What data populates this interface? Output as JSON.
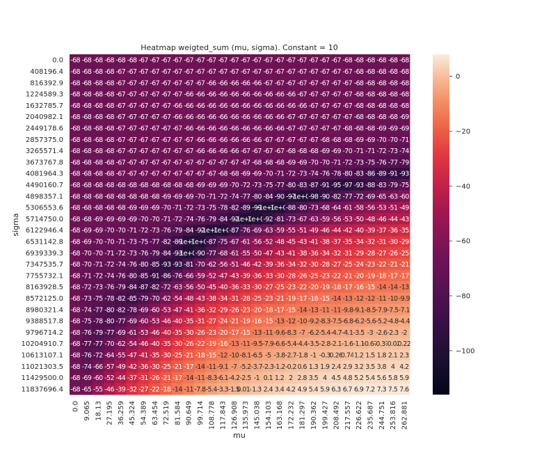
{
  "chart_data": {
    "type": "heatmap",
    "title": "Heatmap weigted_sum (mu, sigma). Constant = 10",
    "xlabel": "mu",
    "ylabel": "sigma",
    "x_ticks": [
      "0.0",
      "9.065",
      "18.13",
      "27.195",
      "36.259",
      "45.324",
      "54.389",
      "63.454",
      "72.519",
      "81.584",
      "90.649",
      "99.714",
      "108.778",
      "117.843",
      "126.908",
      "135.973",
      "145.038",
      "154.103",
      "163.168",
      "172.232",
      "181.297",
      "190.362",
      "199.427",
      "208.492",
      "217.557",
      "226.622",
      "235.687",
      "244.751",
      "253.816",
      "262.881"
    ],
    "y_ticks": [
      "0.0",
      "408196.4",
      "816392.9",
      "1224589.3",
      "1632785.7",
      "2040982.1",
      "2449178.6",
      "2857375.0",
      "3265571.4",
      "3673767.8",
      "4081964.3",
      "4490160.7",
      "4898357.1",
      "5306553.6",
      "5714750.0",
      "6122946.4",
      "6531142.8",
      "6939339.3",
      "7347535.7",
      "7755732.1",
      "8163928.5",
      "8572125.0",
      "8980321.4",
      "9388517.8",
      "9796714.2",
      "10204910.7",
      "10613107.1",
      "11021303.5",
      "11429500.0",
      "11837696.4"
    ],
    "colorbar_ticks": [
      0,
      -20,
      -40,
      -60,
      -80,
      -100
    ],
    "color_range": [
      -116,
      8
    ],
    "cells": [
      [
        "-68",
        "-68",
        "-68",
        "-68",
        "-68",
        "-68",
        "-67",
        "-67",
        "-67",
        "-67",
        "-67",
        "-67",
        "-67",
        "-67",
        "-67",
        "-67",
        "-67",
        "-67",
        "-67",
        "-67",
        "-67",
        "-67",
        "-67",
        "-67",
        "-68",
        "-68",
        "-68",
        "-68",
        "-68",
        "-68"
      ],
      [
        "-68",
        "-68",
        "-68",
        "-68",
        "-67",
        "-67",
        "-67",
        "-67",
        "-67",
        "-67",
        "-67",
        "-67",
        "-67",
        "-67",
        "-67",
        "-67",
        "-67",
        "-67",
        "-67",
        "-67",
        "-67",
        "-67",
        "-67",
        "-67",
        "-67",
        "-68",
        "-68",
        "-68",
        "-68",
        "-68"
      ],
      [
        "-68",
        "-68",
        "-68",
        "-68",
        "-67",
        "-67",
        "-67",
        "-67",
        "-67",
        "-67",
        "-67",
        "-67",
        "-66",
        "-66",
        "-66",
        "-66",
        "-66",
        "-67",
        "-67",
        "-67",
        "-67",
        "-67",
        "-67",
        "-67",
        "-67",
        "-68",
        "-68",
        "-68",
        "-68",
        "-68"
      ],
      [
        "-68",
        "-68",
        "-68",
        "-68",
        "-67",
        "-67",
        "-67",
        "-67",
        "-67",
        "-67",
        "-66",
        "-66",
        "-66",
        "-66",
        "-66",
        "-66",
        "-66",
        "-66",
        "-66",
        "-66",
        "-67",
        "-67",
        "-67",
        "-67",
        "-67",
        "-68",
        "-68",
        "-68",
        "-68",
        "-68"
      ],
      [
        "-68",
        "-68",
        "-68",
        "-68",
        "-67",
        "-67",
        "-67",
        "-67",
        "-67",
        "-66",
        "-66",
        "-66",
        "-66",
        "-66",
        "-66",
        "-66",
        "-66",
        "-66",
        "-66",
        "-66",
        "-66",
        "-67",
        "-67",
        "-67",
        "-67",
        "-68",
        "-68",
        "-68",
        "-68",
        "-68"
      ],
      [
        "-68",
        "-68",
        "-68",
        "-68",
        "-67",
        "-67",
        "-67",
        "-67",
        "-67",
        "-66",
        "-66",
        "-66",
        "-66",
        "-66",
        "-66",
        "-66",
        "-66",
        "-66",
        "-66",
        "-67",
        "-67",
        "-67",
        "-67",
        "-67",
        "-67",
        "-68",
        "-68",
        "-68",
        "-68",
        "-69"
      ],
      [
        "-68",
        "-68",
        "-68",
        "-68",
        "-67",
        "-67",
        "-67",
        "-67",
        "-67",
        "-67",
        "-66",
        "-66",
        "-66",
        "-66",
        "-66",
        "-66",
        "-66",
        "-66",
        "-66",
        "-67",
        "-67",
        "-67",
        "-67",
        "-67",
        "-68",
        "-68",
        "-68",
        "-69",
        "-69",
        "-69"
      ],
      [
        "-68",
        "-68",
        "-68",
        "-68",
        "-67",
        "-67",
        "-67",
        "-67",
        "-67",
        "-67",
        "-67",
        "-66",
        "-66",
        "-66",
        "-66",
        "-66",
        "-66",
        "-67",
        "-67",
        "-67",
        "-67",
        "-67",
        "-68",
        "-68",
        "-68",
        "-69",
        "-69",
        "-70",
        "-70",
        "-71"
      ],
      [
        "-68",
        "-68",
        "-68",
        "-68",
        "-67",
        "-67",
        "-67",
        "-67",
        "-67",
        "-67",
        "-67",
        "-66",
        "-66",
        "-66",
        "-66",
        "-67",
        "-67",
        "-67",
        "-67",
        "-68",
        "-68",
        "-68",
        "-69",
        "-69",
        "-70",
        "-71",
        "-71",
        "-72",
        "-73",
        "-74"
      ],
      [
        "-68",
        "-68",
        "-68",
        "-68",
        "-67",
        "-67",
        "-67",
        "-67",
        "-67",
        "-67",
        "-67",
        "-67",
        "-67",
        "-67",
        "-67",
        "-67",
        "-68",
        "-68",
        "-68",
        "-69",
        "-69",
        "-70",
        "-70",
        "-71",
        "-72",
        "-73",
        "-75",
        "-76",
        "-77",
        "-79"
      ],
      [
        "-68",
        "-68",
        "-68",
        "-68",
        "-67",
        "-67",
        "-67",
        "-67",
        "-67",
        "-67",
        "-67",
        "-67",
        "-67",
        "-68",
        "-68",
        "-69",
        "-69",
        "-70",
        "-71",
        "-72",
        "-73",
        "-74",
        "-76",
        "-78",
        "-80",
        "-83",
        "-86",
        "-89",
        "-91",
        "-93"
      ],
      [
        "-68",
        "-68",
        "-68",
        "-68",
        "-68",
        "-68",
        "-68",
        "-68",
        "-68",
        "-68",
        "-68",
        "-69",
        "-69",
        "-69",
        "-70",
        "-72",
        "-73",
        "-75",
        "-77",
        "-80",
        "-83",
        "-87",
        "-91",
        "-95",
        "-97",
        "-93",
        "-88",
        "-83",
        "-79",
        "-75"
      ],
      [
        "-68",
        "-68",
        "-68",
        "-68",
        "-68",
        "-68",
        "-68",
        "-68",
        "-69",
        "-69",
        "-69",
        "-70",
        "-71",
        "-72",
        "-74",
        "-77",
        "-80",
        "-84",
        "-90",
        "-97",
        "-1e+02",
        "-98",
        "-90",
        "-82",
        "-77",
        "-72",
        "-69",
        "-65",
        "-63",
        "-60"
      ],
      [
        "-68",
        "-68",
        "-68",
        "-68",
        "-68",
        "-69",
        "-69",
        "-69",
        "-70",
        "-71",
        "-72",
        "-73",
        "-75",
        "-78",
        "-82",
        "-89",
        "-99",
        "-1e+02",
        "-1e+02",
        "-88",
        "-80",
        "-73",
        "-68",
        "-64",
        "-61",
        "-58",
        "-56",
        "-53",
        "-51",
        "-49"
      ],
      [
        "-68",
        "-68",
        "-69",
        "-69",
        "-69",
        "-69",
        "-70",
        "-70",
        "-71",
        "-72",
        "-74",
        "-76",
        "-79",
        "-84",
        "-92",
        "-1e+02",
        "-1e+02",
        "-92",
        "-81",
        "-73",
        "-67",
        "-63",
        "-59",
        "-56",
        "-53",
        "-50",
        "-48",
        "-46",
        "-44",
        "-43"
      ],
      [
        "-68",
        "-69",
        "-69",
        "-70",
        "-70",
        "-71",
        "-72",
        "-73",
        "-76",
        "-79",
        "-84",
        "-92",
        "-1e+02",
        "-1e+02",
        "-87",
        "-76",
        "-69",
        "-63",
        "-59",
        "-55",
        "-51",
        "-49",
        "-46",
        "-44",
        "-42",
        "-40",
        "-39",
        "-37",
        "-36",
        "-35"
      ],
      [
        "-68",
        "-69",
        "-70",
        "-70",
        "-71",
        "-73",
        "-75",
        "-77",
        "-82",
        "-89",
        "-1e+02",
        "-1e+02",
        "-87",
        "-75",
        "-67",
        "-61",
        "-56",
        "-52",
        "-48",
        "-45",
        "-43",
        "-41",
        "-38",
        "-37",
        "-35",
        "-34",
        "-32",
        "-31",
        "-30",
        "-29"
      ],
      [
        "-68",
        "-70",
        "-70",
        "-71",
        "-72",
        "-73",
        "-76",
        "-79",
        "-84",
        "-93",
        "-1e+02",
        "-90",
        "-77",
        "-68",
        "-61",
        "-55",
        "-50",
        "-47",
        "-43",
        "-41",
        "-38",
        "-36",
        "-34",
        "-32",
        "-31",
        "-29",
        "-28",
        "-27",
        "-26",
        "-25"
      ],
      [
        "-68",
        "-70",
        "-71",
        "-72",
        "-74",
        "-76",
        "-80",
        "-85",
        "-93",
        "-93",
        "-81",
        "-70",
        "-62",
        "-56",
        "-51",
        "-46",
        "-42",
        "-39",
        "-36",
        "-34",
        "-32",
        "-30",
        "-28",
        "-27",
        "-25",
        "-24",
        "-23",
        "-22",
        "-21",
        "-21"
      ],
      [
        "-68",
        "-71",
        "-72",
        "-74",
        "-76",
        "-80",
        "-85",
        "-91",
        "-86",
        "-76",
        "-66",
        "-59",
        "-52",
        "-47",
        "-43",
        "-39",
        "-36",
        "-33",
        "-30",
        "-28",
        "-26",
        "-25",
        "-23",
        "-22",
        "-21",
        "-20",
        "-19",
        "-18",
        "-17",
        "-17"
      ],
      [
        "-68",
        "-72",
        "-73",
        "-76",
        "-79",
        "-84",
        "-87",
        "-82",
        "-72",
        "-63",
        "-56",
        "-50",
        "-45",
        "-40",
        "-36",
        "-33",
        "-30",
        "-27",
        "-25",
        "-23",
        "-22",
        "-20",
        "-19",
        "-18",
        "-17",
        "-16",
        "-15",
        "-14",
        "-14",
        "-13"
      ],
      [
        "-68",
        "-73",
        "-75",
        "-78",
        "-82",
        "-85",
        "-79",
        "-70",
        "-62",
        "-54",
        "-48",
        "-43",
        "-38",
        "-34",
        "-31",
        "-28",
        "-25",
        "-23",
        "-21",
        "-19",
        "-17",
        "-16",
        "-15",
        "-14",
        "-13",
        "-12",
        "-12",
        "-11",
        "-10",
        "-9.9"
      ],
      [
        "-68",
        "-74",
        "-77",
        "-80",
        "-82",
        "-78",
        "-69",
        "-60",
        "-53",
        "-47",
        "-41",
        "-36",
        "-32",
        "-29",
        "-26",
        "-23",
        "-20",
        "-18",
        "-17",
        "-15",
        "-14",
        "-13",
        "-11",
        "-11",
        "-9.8",
        "-9.1",
        "-8.5",
        "-7.9",
        "-7.5",
        "-7.1"
      ],
      [
        "-68",
        "-75",
        "-78",
        "-80",
        "-77",
        "-69",
        "-60",
        "-53",
        "-46",
        "-40",
        "-35",
        "-31",
        "-27",
        "-24",
        "-21",
        "-19",
        "-16",
        "-15",
        "-13",
        "-12",
        "-10",
        "-9.2",
        "-8.3",
        "-7.5",
        "-6.8",
        "-6.2",
        "-5.6",
        "-5.2",
        "-4.8",
        "-4.4"
      ],
      [
        "-68",
        "-76",
        "-79",
        "-77",
        "-69",
        "-61",
        "-53",
        "-46",
        "-40",
        "-35",
        "-30",
        "-26",
        "-23",
        "-20",
        "-17",
        "-15",
        "-13",
        "-11",
        "-9.6",
        "-8.3",
        "-7",
        "-6.2",
        "-5.4",
        "-4.7",
        "-4.1",
        "-3.5",
        "-3",
        "-2.6",
        "-2.3",
        "-2"
      ],
      [
        "-68",
        "-77",
        "-77",
        "-70",
        "-62",
        "-54",
        "-46",
        "-40",
        "-35",
        "-30",
        "-26",
        "-22",
        "-19",
        "-16",
        "-13",
        "-11",
        "-9.5",
        "-7.9",
        "-6.6",
        "-5.4",
        "-4.4",
        "-3.5",
        "-2.8",
        "-2.1",
        "-1.6",
        "-1.1",
        "-0.67",
        "-0.31",
        "-0.02",
        "0.22"
      ],
      [
        "-68",
        "-76",
        "-72",
        "-64",
        "-55",
        "-47",
        "-41",
        "-35",
        "-30",
        "-25",
        "-21",
        "-18",
        "-15",
        "-12",
        "-10",
        "-8.1",
        "-6.5",
        "-5",
        "-3.8",
        "-2.7",
        "-1.8",
        "-1",
        "-0.3",
        "0.26",
        "0.74",
        "1.2",
        "1.5",
        "1.8",
        "2.1",
        "2.3"
      ],
      [
        "-68",
        "-74",
        "-66",
        "-57",
        "-49",
        "-42",
        "-36",
        "-30",
        "-25",
        "-21",
        "-17",
        "-14",
        "-11",
        "-9.1",
        "-7",
        "-5.2",
        "-3.7",
        "-2.3",
        "-1.2",
        "-0.2",
        "0.6",
        "1.3",
        "1.9",
        "2.4",
        "2.9",
        "3.2",
        "3.5",
        "3.8",
        "4",
        "4.2"
      ],
      [
        "-68",
        "-69",
        "-60",
        "-52",
        "-44",
        "-37",
        "-31",
        "-26",
        "-21",
        "-17",
        "-14",
        "-11",
        "-8.3",
        "-6.1",
        "-4.2",
        "-2.5",
        "-1",
        "0.1",
        "1.2",
        "2",
        "2.8",
        "3.5",
        "4",
        "4.5",
        "4.8",
        "5.2",
        "5.4",
        "5.6",
        "5.8",
        "5.9"
      ],
      [
        "-68",
        "-65",
        "-55",
        "-46",
        "-39",
        "-32",
        "-27",
        "-22",
        "-18",
        "-14",
        "-11",
        "-7.8",
        "-5.4",
        "-3.3",
        "-1.5",
        "0.014",
        "1.3",
        "2.4",
        "3.4",
        "4.2",
        "4.9",
        "5.4",
        "5.9",
        "6.3",
        "6.7",
        "6.9",
        "7.2",
        "7.3",
        "7.5",
        "7.6"
      ]
    ]
  }
}
